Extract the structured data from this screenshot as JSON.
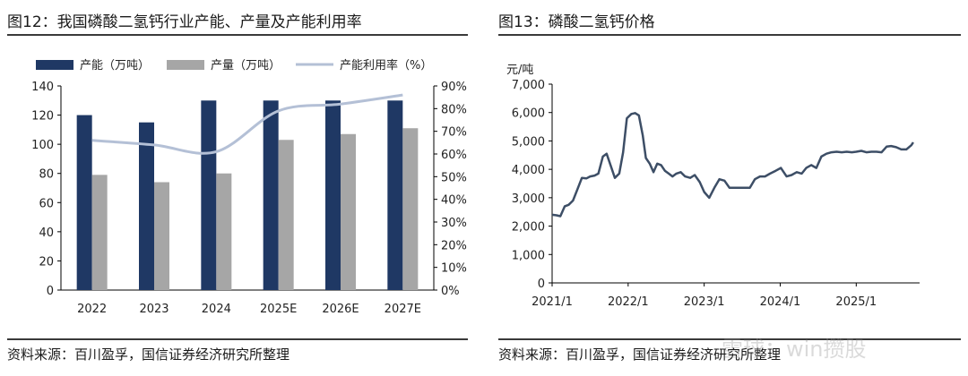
{
  "charts": {
    "fig12": {
      "title": "图12：我国磷酸二氢钙行业产能、产量及产能利用率",
      "source": "资料来源：百川盈孚，国信证券经济研究所整理"
    },
    "fig13": {
      "title": "图13：磷酸二氢钙价格",
      "source": "资料来源：百川盈孚，国信证券经济研究所整理"
    }
  },
  "watermark": "雪球：win攒股",
  "colors": {
    "capacity": "#1f3864",
    "output": "#a6a6a6",
    "utilization": "#b4c0d6",
    "price": "#3d4e66"
  },
  "chart_data": [
    {
      "type": "bar",
      "title": "图12：我国磷酸二氢钙行业产能、产量及产能利用率",
      "categories": [
        "2022",
        "2023",
        "2024",
        "2025E",
        "2026E",
        "2027E"
      ],
      "series": [
        {
          "name": "产能（万吨）",
          "type": "bar",
          "axis": "left",
          "values": [
            120,
            115,
            130,
            130,
            130,
            130
          ]
        },
        {
          "name": "产量（万吨）",
          "type": "bar",
          "axis": "left",
          "values": [
            79,
            74,
            80,
            103,
            107,
            111
          ]
        },
        {
          "name": "产能利用率（%）",
          "type": "line",
          "axis": "right",
          "values": [
            66,
            64,
            61,
            79,
            82,
            86
          ]
        }
      ],
      "y_left": {
        "min": 0,
        "max": 140,
        "step": 20,
        "ticks": [
          "0",
          "20",
          "40",
          "60",
          "80",
          "100",
          "120",
          "140"
        ]
      },
      "y_right": {
        "min": 0,
        "max": 90,
        "step": 10,
        "ticks": [
          "0%",
          "10%",
          "20%",
          "30%",
          "40%",
          "50%",
          "60%",
          "70%",
          "80%",
          "90%"
        ]
      },
      "legend": "top"
    },
    {
      "type": "line",
      "title": "图13：磷酸二氢钙价格",
      "ylabel": "元/吨",
      "x_ticks": [
        "2021/1",
        "2022/1",
        "2023/1",
        "2024/1",
        "2025/1"
      ],
      "x_range": [
        "2021/1",
        "2025/10"
      ],
      "ylim": [
        0,
        7000
      ],
      "y_ticks": [
        "0",
        "1,000",
        "2,000",
        "3,000",
        "4,000",
        "5,000",
        "6,000",
        "7,000"
      ],
      "series": [
        {
          "name": "磷酸二氢钙价格",
          "x": [
            0,
            0.7,
            1.3,
            2.0,
            2.6,
            3.3,
            4.0,
            4.7,
            5.4,
            6.0,
            6.7,
            7.3,
            8.0,
            8.6,
            9.3,
            9.9,
            10.6,
            11.2,
            11.8,
            12.5,
            13.1,
            13.7,
            14.3,
            14.8,
            15.4,
            16.0,
            16.6,
            17.2,
            17.8,
            18.4,
            19.0,
            19.6,
            20.3,
            21.0,
            21.8,
            22.5,
            23.3,
            24.0,
            24.8,
            25.6,
            26.4,
            27.2,
            28.0,
            28.8,
            29.6,
            30.4,
            31.2,
            32.0,
            32.8,
            33.6,
            34.4,
            35.3,
            36.1,
            37.0,
            37.8,
            38.6,
            39.4,
            40.1,
            40.9,
            41.7,
            42.5,
            43.3,
            44.1,
            44.9,
            45.7,
            46.5,
            47.3,
            48.0,
            48.8,
            49.6,
            50.4,
            51.2,
            52.0,
            52.8,
            53.5,
            54.3,
            55.1,
            55.9,
            56.7,
            57.0
          ],
          "values": [
            2400,
            2380,
            2350,
            2700,
            2750,
            2900,
            3300,
            3700,
            3680,
            3750,
            3780,
            3850,
            4450,
            4550,
            4100,
            3700,
            3850,
            4600,
            5800,
            5950,
            5980,
            5900,
            5200,
            4400,
            4200,
            3900,
            4200,
            4150,
            3950,
            3850,
            3750,
            3850,
            3900,
            3750,
            3700,
            3800,
            3550,
            3200,
            3000,
            3350,
            3650,
            3600,
            3350,
            3350,
            3350,
            3350,
            3350,
            3650,
            3750,
            3750,
            3850,
            3950,
            4050,
            3750,
            3800,
            3900,
            3850,
            4050,
            4150,
            4050,
            4450,
            4550,
            4600,
            4620,
            4600,
            4620,
            4600,
            4620,
            4650,
            4600,
            4620,
            4620,
            4600,
            4800,
            4820,
            4780,
            4700,
            4700,
            4850,
            4950
          ]
        }
      ]
    }
  ]
}
